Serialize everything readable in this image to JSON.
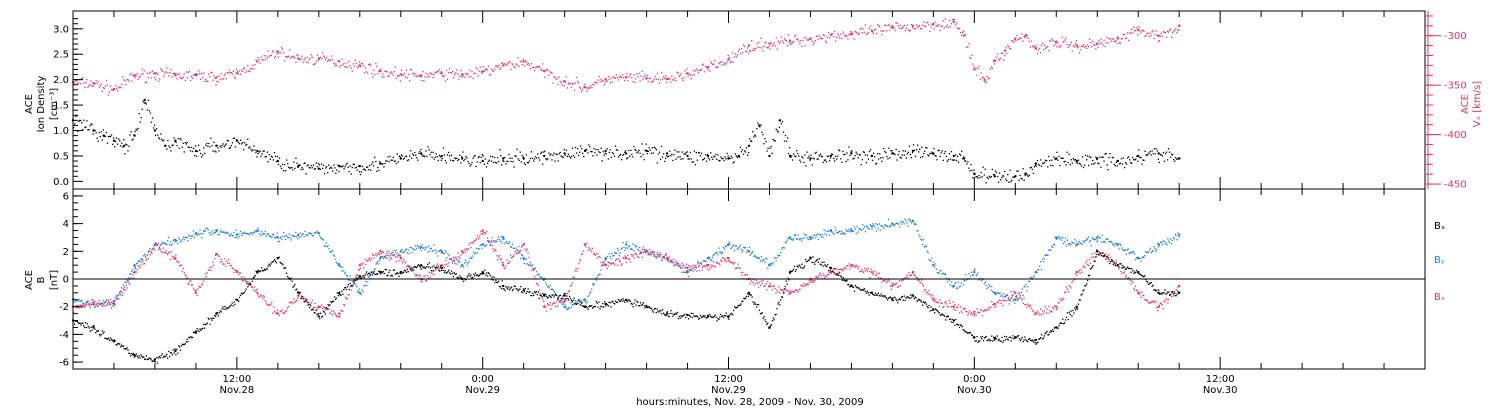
{
  "colors": {
    "density": "#000000",
    "vx": "#e8336b",
    "bx": "#000000",
    "by": "#1f7fd8",
    "bz": "#e8336b",
    "axis": "#000000"
  },
  "x_axis": {
    "start_hours": 4,
    "end_hours": 70,
    "label": "hours:minutes, Nov. 28, 2009 - Nov. 30, 2009",
    "ticks": [
      {
        "hours": 12,
        "time": "12:00",
        "date": "Nov.28"
      },
      {
        "hours": 24,
        "time": "0:00",
        "date": "Nov.29"
      },
      {
        "hours": 36,
        "time": "12:00",
        "date": "Nov.29"
      },
      {
        "hours": 48,
        "time": "0:00",
        "date": "Nov.30"
      },
      {
        "hours": 60,
        "time": "12:00",
        "date": "Nov.30"
      }
    ]
  },
  "chart_data": [
    {
      "type": "scatter",
      "panel": "plasma",
      "left_axis": {
        "label_lines": [
          "ACE",
          "Ion Density",
          "[cm⁻³]"
        ],
        "ylim": [
          -0.15,
          3.35
        ],
        "ticks": [
          "0.0",
          "0.5",
          "1.0",
          "1.5",
          "2.0",
          "2.5",
          "3.0"
        ]
      },
      "right_axis": {
        "label_lines": [
          "ACE",
          "Vₓ [km/s]"
        ],
        "ylim": [
          -455,
          -275
        ],
        "ticks": [
          "-450",
          "-400",
          "-350",
          "-300"
        ]
      },
      "series": [
        {
          "key": "density",
          "axis": "left",
          "x": [
            4,
            5,
            5.5,
            6,
            6.5,
            7,
            7.5,
            8,
            8.5,
            9,
            10,
            11,
            12,
            13,
            14,
            15,
            16,
            17,
            18,
            19,
            20,
            21,
            22,
            23,
            24,
            25,
            26,
            27,
            28,
            29,
            30,
            31,
            32,
            33,
            34,
            35,
            36,
            36.5,
            37,
            37.5,
            38,
            38.5,
            39,
            40,
            41,
            42,
            43,
            44,
            45,
            46,
            47,
            47.5,
            48,
            49,
            50,
            50.5,
            51,
            52,
            53,
            54,
            55,
            56,
            57,
            58
          ],
          "y": [
            1.2,
            1.0,
            0.9,
            0.8,
            0.7,
            0.9,
            1.6,
            1.0,
            0.7,
            0.8,
            0.6,
            0.7,
            0.8,
            0.6,
            0.4,
            0.3,
            0.25,
            0.3,
            0.3,
            0.35,
            0.45,
            0.55,
            0.5,
            0.45,
            0.4,
            0.45,
            0.45,
            0.5,
            0.55,
            0.6,
            0.6,
            0.55,
            0.6,
            0.55,
            0.5,
            0.5,
            0.45,
            0.5,
            0.7,
            1.1,
            0.5,
            1.2,
            0.5,
            0.45,
            0.5,
            0.55,
            0.5,
            0.55,
            0.6,
            0.55,
            0.5,
            0.45,
            0.15,
            0.1,
            0.1,
            0.15,
            0.35,
            0.45,
            0.4,
            0.45,
            0.4,
            0.5,
            0.55,
            0.45
          ]
        },
        {
          "key": "vx",
          "axis": "right",
          "x": [
            4,
            5,
            6,
            7,
            8,
            9,
            10,
            11,
            12,
            13,
            14,
            15,
            16,
            17,
            18,
            19,
            20,
            21,
            22,
            23,
            24,
            25,
            26,
            27,
            28,
            29,
            30,
            31,
            32,
            33,
            34,
            35,
            36,
            37,
            38,
            39,
            40,
            41,
            42,
            43,
            44,
            45,
            46,
            47,
            47.5,
            48,
            48.5,
            49,
            49.5,
            50,
            50.5,
            51,
            52,
            53,
            54,
            55,
            56,
            57,
            58
          ],
          "y": [
            -347,
            -348,
            -354,
            -340,
            -338,
            -340,
            -340,
            -342,
            -338,
            -326,
            -316,
            -323,
            -323,
            -326,
            -330,
            -336,
            -339,
            -340,
            -338,
            -339,
            -336,
            -330,
            -326,
            -336,
            -346,
            -352,
            -344,
            -342,
            -343,
            -344,
            -338,
            -332,
            -324,
            -310,
            -308,
            -305,
            -303,
            -299,
            -298,
            -295,
            -292,
            -290,
            -288,
            -286,
            -300,
            -334,
            -345,
            -325,
            -315,
            -303,
            -300,
            -313,
            -306,
            -310,
            -308,
            -302,
            -294,
            -300,
            -290
          ]
        }
      ]
    },
    {
      "type": "scatter",
      "panel": "magnetic-field",
      "left_axis": {
        "label_lines": [
          "ACE",
          "B",
          "[nT]"
        ],
        "ylim": [
          -6.5,
          6.5
        ],
        "ticks": [
          "-6",
          "-4",
          "-2",
          "0",
          "2",
          "4",
          "6"
        ],
        "zero_line": true
      },
      "legend": [
        {
          "key": "bx",
          "label": "Bₓ"
        },
        {
          "key": "by",
          "label": "Bᵧ"
        },
        {
          "key": "bz",
          "label": "Bₓ"
        }
      ],
      "series": [
        {
          "key": "bx",
          "name": "Bₓ",
          "x": [
            4,
            5,
            6,
            7,
            8,
            9,
            10,
            11,
            12,
            13,
            14,
            15,
            16,
            17,
            18,
            19,
            20,
            21,
            22,
            23,
            24,
            25,
            26,
            27,
            28,
            29,
            30,
            31,
            32,
            33,
            34,
            35,
            36,
            37,
            38,
            39,
            40,
            41,
            42,
            43,
            44,
            45,
            46,
            47,
            48,
            49,
            50,
            51,
            52,
            53,
            54,
            55,
            56,
            57,
            58
          ],
          "y": [
            -3,
            -3.5,
            -4.5,
            -5.5,
            -5.8,
            -5.2,
            -3.8,
            -2.5,
            -1.5,
            0.5,
            1.5,
            -1,
            -2.7,
            -1,
            0.2,
            0.5,
            0.5,
            1,
            0.8,
            0,
            0.5,
            -0.5,
            -0.8,
            -1.2,
            -1.2,
            -2,
            -1.8,
            -1.5,
            -2,
            -2.5,
            -2.6,
            -2.7,
            -2.7,
            -1,
            -3.5,
            0.5,
            1.5,
            0.8,
            -0.5,
            -1,
            -1.5,
            -1.2,
            -2.2,
            -3,
            -4.2,
            -4.3,
            -4.2,
            -4.4,
            -3.5,
            -2,
            2,
            1,
            0.5,
            -1,
            -1
          ]
        },
        {
          "key": "by",
          "name": "Bᵧ",
          "x": [
            4,
            5,
            6,
            7,
            8,
            9,
            10,
            11,
            12,
            13,
            14,
            15,
            16,
            17,
            18,
            19,
            20,
            21,
            22,
            23,
            24,
            25,
            26,
            27,
            28,
            29,
            30,
            31,
            32,
            33,
            34,
            35,
            36,
            37,
            38,
            39,
            40,
            41,
            42,
            43,
            44,
            45,
            46,
            47,
            48,
            49,
            50,
            51,
            52,
            53,
            54,
            55,
            56,
            57,
            58
          ],
          "y": [
            -1.5,
            -1.8,
            -1.6,
            1,
            2.5,
            2.8,
            3.3,
            3.5,
            3.2,
            3.5,
            3,
            3.2,
            3.3,
            1,
            -1,
            1.5,
            2,
            2.3,
            2,
            1,
            2.5,
            3,
            1.5,
            0,
            -2,
            -1.5,
            1.5,
            2.5,
            2,
            1.5,
            0.5,
            1.5,
            2.5,
            2,
            1,
            3,
            3,
            3.5,
            3.5,
            3.8,
            4,
            4.2,
            1,
            -0.5,
            0.5,
            -1,
            -1.5,
            0.5,
            3,
            2.5,
            3,
            2.5,
            1.5,
            2.5,
            3.2
          ]
        },
        {
          "key": "bz",
          "name": "Bₓ",
          "x": [
            4,
            5,
            6,
            7,
            8,
            9,
            10,
            11,
            12,
            13,
            14,
            15,
            16,
            17,
            18,
            19,
            20,
            21,
            22,
            23,
            24,
            25,
            26,
            27,
            28,
            29,
            30,
            31,
            32,
            33,
            34,
            35,
            36,
            37,
            38,
            39,
            40,
            41,
            42,
            43,
            44,
            45,
            46,
            47,
            48,
            49,
            50,
            51,
            52,
            53,
            54,
            55,
            56,
            57,
            58
          ],
          "y": [
            -2,
            -1.7,
            -1.8,
            0.5,
            2.5,
            1.5,
            -1,
            1.8,
            0.5,
            -1,
            -2.5,
            -1.2,
            -2,
            -2.5,
            1,
            2,
            1.5,
            0,
            1,
            2,
            3.5,
            1,
            2.5,
            -2,
            -1.5,
            2.5,
            1,
            1.5,
            2,
            1.5,
            0.8,
            1,
            1.5,
            0,
            -0.5,
            -1,
            0,
            0.5,
            1,
            0.5,
            -0.5,
            0.5,
            -1.5,
            -2,
            -2.5,
            -1.8,
            -1,
            -2.5,
            -2,
            0.5,
            2,
            1,
            -1,
            -2,
            -0.5
          ]
        }
      ]
    }
  ]
}
